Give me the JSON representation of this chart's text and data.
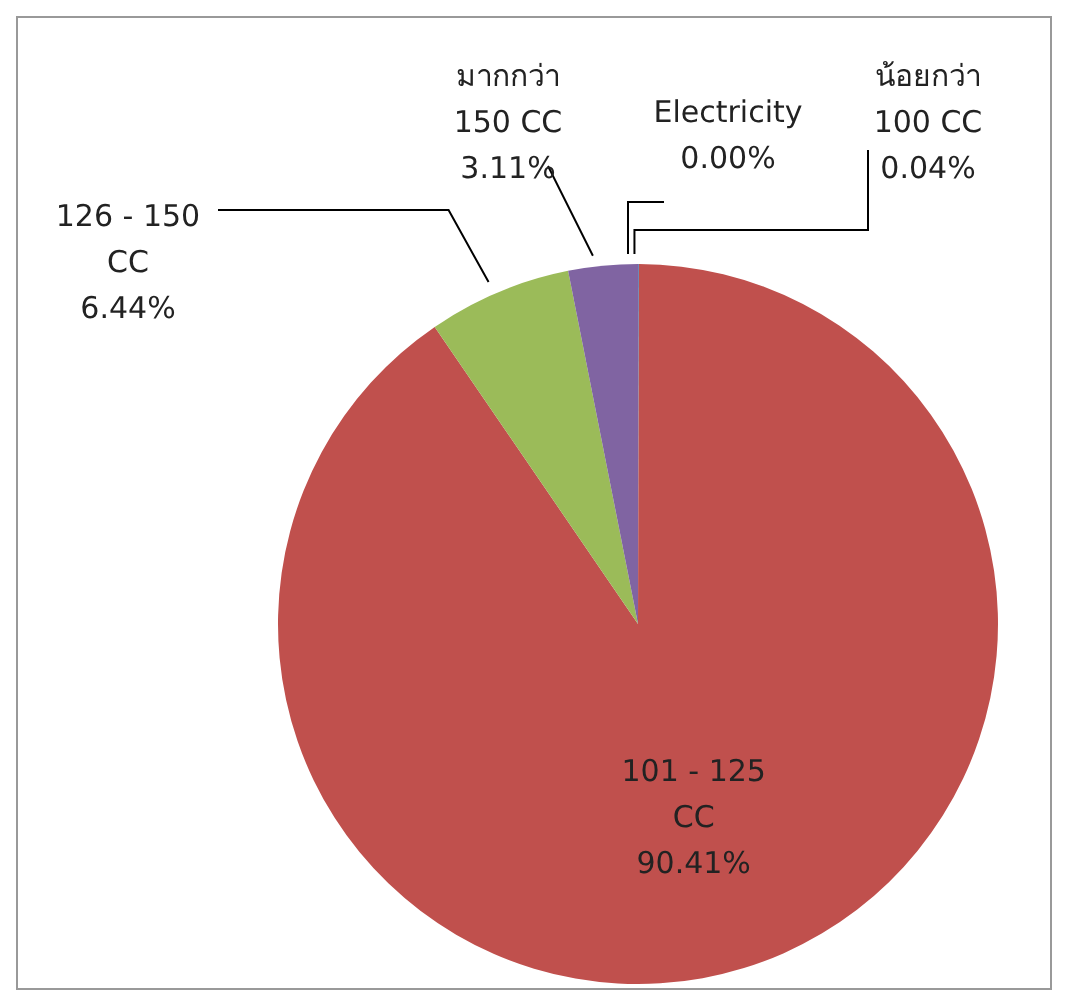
{
  "chart_data": {
    "type": "pie",
    "categories": [
      "น้อยกว่า 100 CC",
      "101 - 125 CC",
      "126 - 150 CC",
      "มากกว่า 150 CC",
      "Electricity"
    ],
    "values": [
      0.04,
      90.41,
      6.44,
      3.11,
      0
    ],
    "value_labels": [
      "0.04%",
      "90.41%",
      "6.44%",
      "3.11%",
      "0.00%"
    ],
    "colors": [
      "#4f81bd",
      "#c0504d",
      "#9bbb59",
      "#8064a2",
      "#4bacc6"
    ],
    "legend": false
  }
}
